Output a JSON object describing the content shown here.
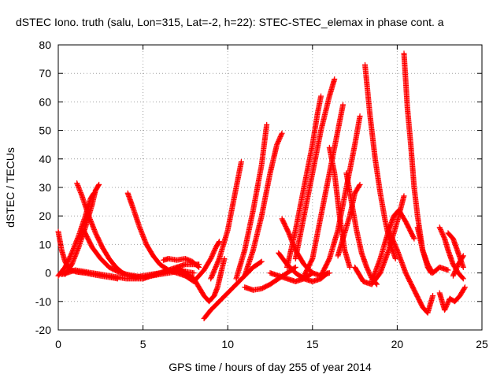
{
  "chart_data": {
    "type": "scatter",
    "title": "dSTEC Iono. truth (salu, Lon=315, Lat=-2, h=22): STEC-STEC_elemax in phase cont. a",
    "xlabel": "GPS time / hours of day 255 of year 2014",
    "ylabel": "dSTEC  / TECUs",
    "xlim": [
      0,
      25
    ],
    "ylim": [
      -20,
      80
    ],
    "xticks": [
      0,
      5,
      10,
      15,
      20,
      25
    ],
    "yticks": [
      -20,
      -10,
      0,
      10,
      20,
      30,
      40,
      50,
      60,
      70,
      80
    ],
    "grid": true,
    "marker": "+",
    "color": "#ff0000",
    "series": [
      {
        "x": [
          0.0,
          0.2,
          0.4,
          0.6,
          0.8,
          1.0,
          1.3,
          1.6,
          2.0,
          2.5,
          3.0,
          3.5
        ],
        "y": [
          14.5,
          8,
          4,
          2,
          1,
          0.5,
          0.2,
          0,
          -0.5,
          -1,
          -1.5,
          -2
        ]
      },
      {
        "x": [
          0.2,
          0.5,
          1.0,
          1.5,
          2.0,
          2.5,
          3.0,
          3.5,
          4.0,
          4.5,
          5.0
        ],
        "y": [
          -0.5,
          0,
          1,
          0.5,
          0,
          -0.5,
          -1,
          -1.5,
          -2,
          -2,
          -2
        ]
      },
      {
        "x": [
          1.1,
          1.4,
          1.8,
          2.2,
          2.6,
          3.0,
          3.4,
          3.8,
          4.2,
          4.6,
          5.0,
          5.5,
          6.0,
          6.5,
          7.0,
          7.5
        ],
        "y": [
          31.5,
          27,
          20,
          14,
          9,
          5,
          2,
          0,
          -1,
          -1.5,
          -1,
          -0.5,
          0,
          0.5,
          1,
          0.5
        ]
      },
      {
        "x": [
          0.0,
          0.4,
          0.8,
          1.2,
          1.6,
          1.9,
          2.1
        ],
        "y": [
          -1,
          2,
          7,
          13,
          20,
          26,
          28
        ]
      },
      {
        "x": [
          0.4,
          0.8,
          1.2,
          1.6,
          2.0,
          2.2,
          2.4
        ],
        "y": [
          -0.5,
          3,
          9,
          16,
          24,
          29,
          31
        ]
      },
      {
        "x": [
          1.5,
          2.0,
          2.5,
          3.0,
          3.5,
          4.0,
          4.5,
          5.0,
          5.5,
          6.0,
          6.5,
          7.0,
          7.5,
          8.0
        ],
        "y": [
          15,
          9,
          5,
          2,
          0.5,
          -0.5,
          -1,
          -1.5,
          -1,
          -0.5,
          0,
          0.5,
          0.5,
          0
        ]
      },
      {
        "x": [
          4.1,
          4.4,
          4.8,
          5.2,
          5.6,
          6.0,
          6.5,
          7.0,
          7.5,
          8.0
        ],
        "y": [
          28,
          23,
          16,
          10,
          6,
          3,
          1,
          0,
          -1,
          -2
        ]
      },
      {
        "x": [
          5.0,
          5.5,
          6.0,
          6.5,
          7.0,
          7.5,
          8.0,
          8.3
        ],
        "y": [
          -2,
          -1,
          0,
          1,
          2,
          3,
          3,
          3
        ]
      },
      {
        "x": [
          6.2,
          6.5,
          7.0,
          7.5,
          7.9,
          8.3
        ],
        "y": [
          4.5,
          5,
          4.5,
          5,
          4,
          2
        ]
      },
      {
        "x": [
          7.0,
          7.5,
          8.0,
          8.3,
          8.6,
          8.9,
          9.2,
          9.4,
          9.6,
          9.8
        ],
        "y": [
          2,
          0,
          -2,
          -5,
          -8,
          -10,
          -8,
          -5,
          0,
          5
        ]
      },
      {
        "x": [
          7.5,
          8.0,
          8.3,
          8.6,
          9.0,
          9.3,
          9.5
        ],
        "y": [
          -1,
          -3,
          -1,
          1,
          5,
          9,
          11
        ]
      },
      {
        "x": [
          8.6,
          9.0,
          9.5,
          10.0,
          10.5,
          11.0,
          11.5,
          12.0
        ],
        "y": [
          -16,
          -13,
          -10,
          -7,
          -4,
          -1,
          2,
          4
        ]
      },
      {
        "x": [
          9.0,
          9.5,
          10.0,
          10.5,
          10.8
        ],
        "y": [
          -2,
          5,
          15,
          30,
          39
        ]
      },
      {
        "x": [
          11.0,
          11.5,
          12.0,
          12.5,
          13.0,
          13.5,
          14.0
        ],
        "y": [
          -5,
          -6,
          -5.5,
          -4,
          -2,
          0,
          2
        ]
      },
      {
        "x": [
          11.0,
          11.5,
          12.0,
          12.5,
          12.9,
          13.2
        ],
        "y": [
          -1,
          8,
          20,
          35,
          45,
          49
        ]
      },
      {
        "x": [
          10.5,
          11.0,
          11.5,
          12.0,
          12.3
        ],
        "y": [
          -2,
          8,
          22,
          38,
          52
        ]
      },
      {
        "x": [
          12.5,
          13.0,
          13.5,
          14.0,
          14.5,
          15.0
        ],
        "y": [
          0,
          -1,
          -2,
          -3,
          -2,
          0
        ]
      },
      {
        "x": [
          13.0,
          13.5,
          14.0,
          14.5,
          15.0,
          15.5,
          15.9
        ],
        "y": [
          7,
          3,
          0,
          -2,
          -3,
          -2,
          0
        ]
      },
      {
        "x": [
          13.2,
          13.6,
          14.0,
          14.5,
          15.0,
          15.5,
          16.0
        ],
        "y": [
          19,
          14,
          8,
          3,
          0,
          -1,
          0
        ]
      },
      {
        "x": [
          13.5,
          14.0,
          14.5,
          15.0,
          15.3,
          15.5
        ],
        "y": [
          2,
          15,
          30,
          45,
          56,
          62
        ]
      },
      {
        "x": [
          14.0,
          14.5,
          15.0,
          15.5,
          16.0,
          16.3
        ],
        "y": [
          5,
          20,
          35,
          50,
          62,
          68
        ]
      },
      {
        "x": [
          14.5,
          15.0,
          15.5,
          16.0,
          16.5,
          16.8
        ],
        "y": [
          -1,
          5,
          20,
          35,
          50,
          59
        ]
      },
      {
        "x": [
          15.5,
          16.0,
          16.5,
          17.0,
          17.5,
          17.8
        ],
        "y": [
          -1,
          5,
          15,
          30,
          45,
          55
        ]
      },
      {
        "x": [
          16.0,
          16.3,
          16.6,
          16.9,
          17.2
        ],
        "y": [
          44,
          35,
          20,
          8,
          2
        ]
      },
      {
        "x": [
          16.5,
          16.8,
          17.2,
          17.5,
          17.8
        ],
        "y": [
          6,
          12,
          20,
          28,
          31
        ]
      },
      {
        "x": [
          17.0,
          17.3,
          17.6,
          17.9,
          18.2,
          18.5,
          18.8
        ],
        "y": [
          35,
          25,
          15,
          7,
          2,
          -2,
          -4
        ]
      },
      {
        "x": [
          18.1,
          18.4,
          18.7,
          19.0,
          19.3,
          19.6,
          19.9
        ],
        "y": [
          73,
          55,
          40,
          28,
          18,
          10,
          5
        ]
      },
      {
        "x": [
          17.5,
          18.0,
          18.5,
          19.0,
          19.5,
          20.0,
          20.4
        ],
        "y": [
          2,
          -3,
          -4,
          0,
          8,
          18,
          27
        ]
      },
      {
        "x": [
          18.5,
          19.0,
          19.5,
          19.8,
          20.1,
          20.5,
          21.0
        ],
        "y": [
          -3,
          5,
          15,
          20,
          22,
          18,
          12
        ]
      },
      {
        "x": [
          20.4,
          20.6,
          20.8,
          21.0,
          21.2,
          21.5,
          21.8,
          22.0
        ],
        "y": [
          77,
          58,
          45,
          30,
          20,
          8,
          2,
          0
        ]
      },
      {
        "x": [
          19.5,
          20.0,
          20.5,
          21.0,
          21.5,
          21.8,
          22.1
        ],
        "y": [
          15,
          8,
          0,
          -6,
          -12,
          -14,
          -8
        ]
      },
      {
        "x": [
          21.2,
          21.5,
          21.8,
          22.1,
          22.5,
          23.0
        ],
        "y": [
          16,
          8,
          3,
          0,
          2,
          1
        ]
      },
      {
        "x": [
          22.5,
          22.8,
          23.0,
          23.3,
          23.6,
          23.9
        ],
        "y": [
          16,
          12,
          8,
          3,
          0,
          -2
        ]
      },
      {
        "x": [
          22.5,
          22.8,
          23.1,
          23.4,
          23.7,
          24.0
        ],
        "y": [
          -7,
          -13,
          -9,
          -10,
          -8,
          -5
        ]
      },
      {
        "x": [
          23.0,
          23.3,
          23.6,
          23.9
        ],
        "y": [
          14,
          12,
          7,
          2
        ]
      },
      {
        "x": [
          23.3,
          23.6,
          23.9
        ],
        "y": [
          -1,
          3,
          6
        ]
      }
    ]
  }
}
